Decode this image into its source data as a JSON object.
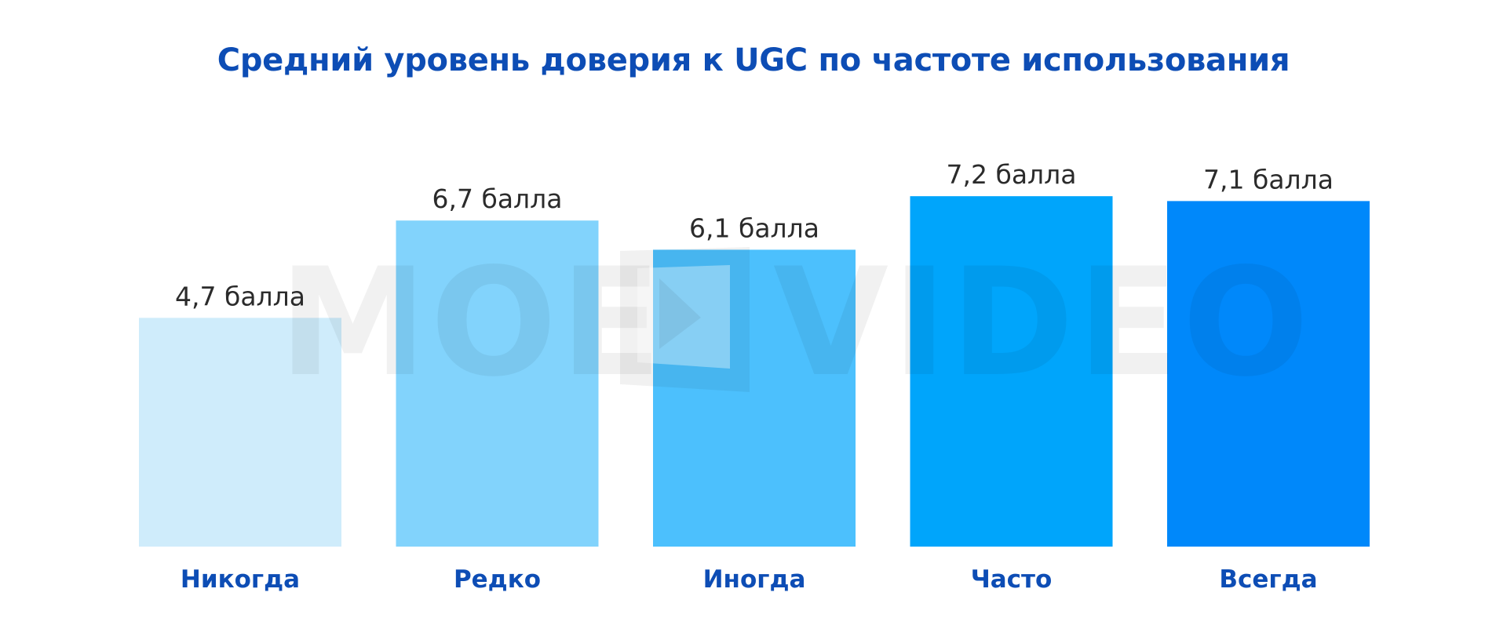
{
  "chart_data": {
    "type": "bar",
    "title": "Средний уровень доверия к UGC по частоте использования",
    "categories": [
      "Никогда",
      "Редко",
      "Иногда",
      "Часто",
      "Всегда"
    ],
    "values": [
      4.7,
      6.7,
      6.1,
      7.2,
      7.1
    ],
    "value_labels": [
      "4,7 балла",
      "6,7 балла",
      "6,1 балла",
      "7,2 балла",
      "7,1 балла"
    ],
    "bar_colors": [
      "#CFECFB",
      "#82D3FC",
      "#4CC0FD",
      "#00A5FB",
      "#0088FA"
    ],
    "label_color": "#0D4DB5",
    "title_color": "#0D4DB5",
    "xlabel": "",
    "ylabel": "",
    "ylim": [
      0,
      10.2
    ],
    "grid": false,
    "legend": "none"
  },
  "watermark": {
    "text_left": "MOE",
    "text_right": "VIDEO",
    "icon": "play-icon"
  }
}
